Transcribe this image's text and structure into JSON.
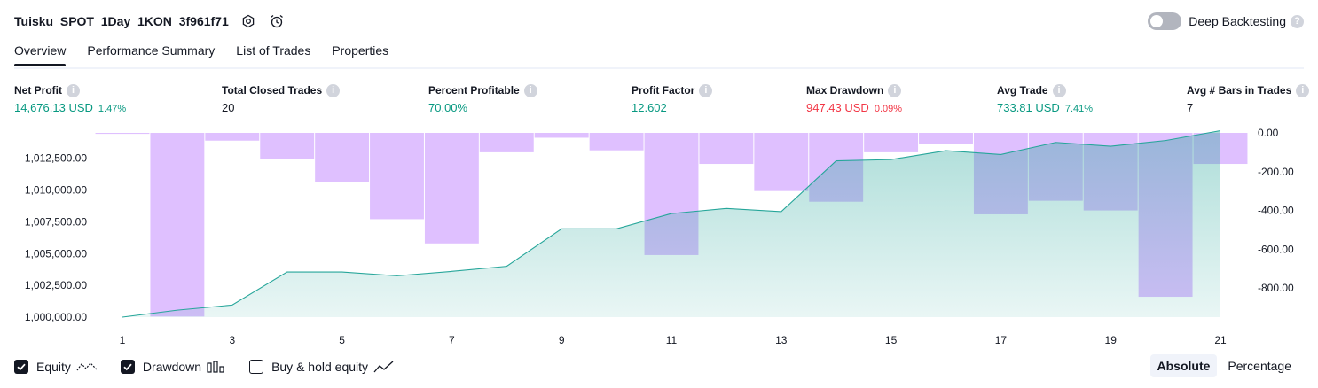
{
  "header": {
    "strategy_name": "Tuisku_SPOT_1Day_1KON_3f961f71",
    "settings_icon": "gear-icon",
    "alert_icon": "add-alert-clock-icon",
    "deep_backtesting_label": "Deep Backtesting",
    "deep_backtesting_enabled": false,
    "help_icon": "question-icon"
  },
  "tabs": [
    {
      "label": "Overview",
      "active": true
    },
    {
      "label": "Performance Summary",
      "active": false
    },
    {
      "label": "List of Trades",
      "active": false
    },
    {
      "label": "Properties",
      "active": false
    }
  ],
  "metrics": [
    {
      "label": "Net Profit",
      "value": "14,676.13 USD",
      "pct": "1.47%",
      "color": "#089981"
    },
    {
      "label": "Total Closed Trades",
      "value": "20",
      "pct": "",
      "color": "#131722"
    },
    {
      "label": "Percent Profitable",
      "value": "70.00%",
      "pct": "",
      "color": "#089981"
    },
    {
      "label": "Profit Factor",
      "value": "12.602",
      "pct": "",
      "color": "#089981"
    },
    {
      "label": "Max Drawdown",
      "value": "947.43 USD",
      "pct": "0.09%",
      "color": "#f23645"
    },
    {
      "label": "Avg Trade",
      "value": "733.81 USD",
      "pct": "7.41%",
      "color": "#089981"
    },
    {
      "label": "Avg # Bars in Trades",
      "value": "7",
      "pct": "",
      "color": "#131722"
    }
  ],
  "chart_data": {
    "type": "area",
    "x": [
      1,
      2,
      3,
      4,
      5,
      6,
      7,
      8,
      9,
      10,
      11,
      12,
      13,
      14,
      15,
      16,
      17,
      18,
      19,
      20,
      21
    ],
    "x_tick_labels": [
      "1",
      "3",
      "5",
      "7",
      "9",
      "11",
      "13",
      "15",
      "17",
      "19",
      "21"
    ],
    "left_axis": {
      "tick_labels": [
        "1,000,000.00",
        "1,002,500.00",
        "1,005,000.00",
        "1,007,500.00",
        "1,010,000.00",
        "1,012,500.00"
      ],
      "ylim": [
        1000000,
        1014500
      ]
    },
    "right_axis": {
      "tick_labels": [
        "0.00",
        "-200.00",
        "-400.00",
        "-600.00",
        "-800.00"
      ],
      "ylim": [
        -950,
        0
      ]
    },
    "series": [
      {
        "name": "Equity",
        "type": "area",
        "axis": "left",
        "color": "#26a69a",
        "values": [
          1000000,
          1000550,
          1000950,
          1003550,
          1003550,
          1003250,
          1003600,
          1004000,
          1006950,
          1006950,
          1008150,
          1008550,
          1008300,
          1012300,
          1012400,
          1013100,
          1012800,
          1013750,
          1013450,
          1013900,
          1014676
        ]
      },
      {
        "name": "Drawdown",
        "type": "bar",
        "axis": "right",
        "color": "#d1a5ff",
        "values": [
          -5,
          -947,
          -40,
          -135,
          -255,
          -445,
          -570,
          -100,
          -25,
          -90,
          -630,
          -160,
          -300,
          -355,
          -100,
          -55,
          -420,
          -350,
          -400,
          -845,
          -160
        ]
      }
    ],
    "legend": [
      {
        "label": "Equity",
        "checked": true,
        "icon": "equity-line-icon"
      },
      {
        "label": "Drawdown",
        "checked": true,
        "icon": "drawdown-bars-icon"
      },
      {
        "label": "Buy & hold equity",
        "checked": false,
        "icon": "buy-hold-line-icon"
      }
    ],
    "grid": false
  },
  "modes": [
    {
      "label": "Absolute",
      "active": true
    },
    {
      "label": "Percentage",
      "active": false
    }
  ]
}
